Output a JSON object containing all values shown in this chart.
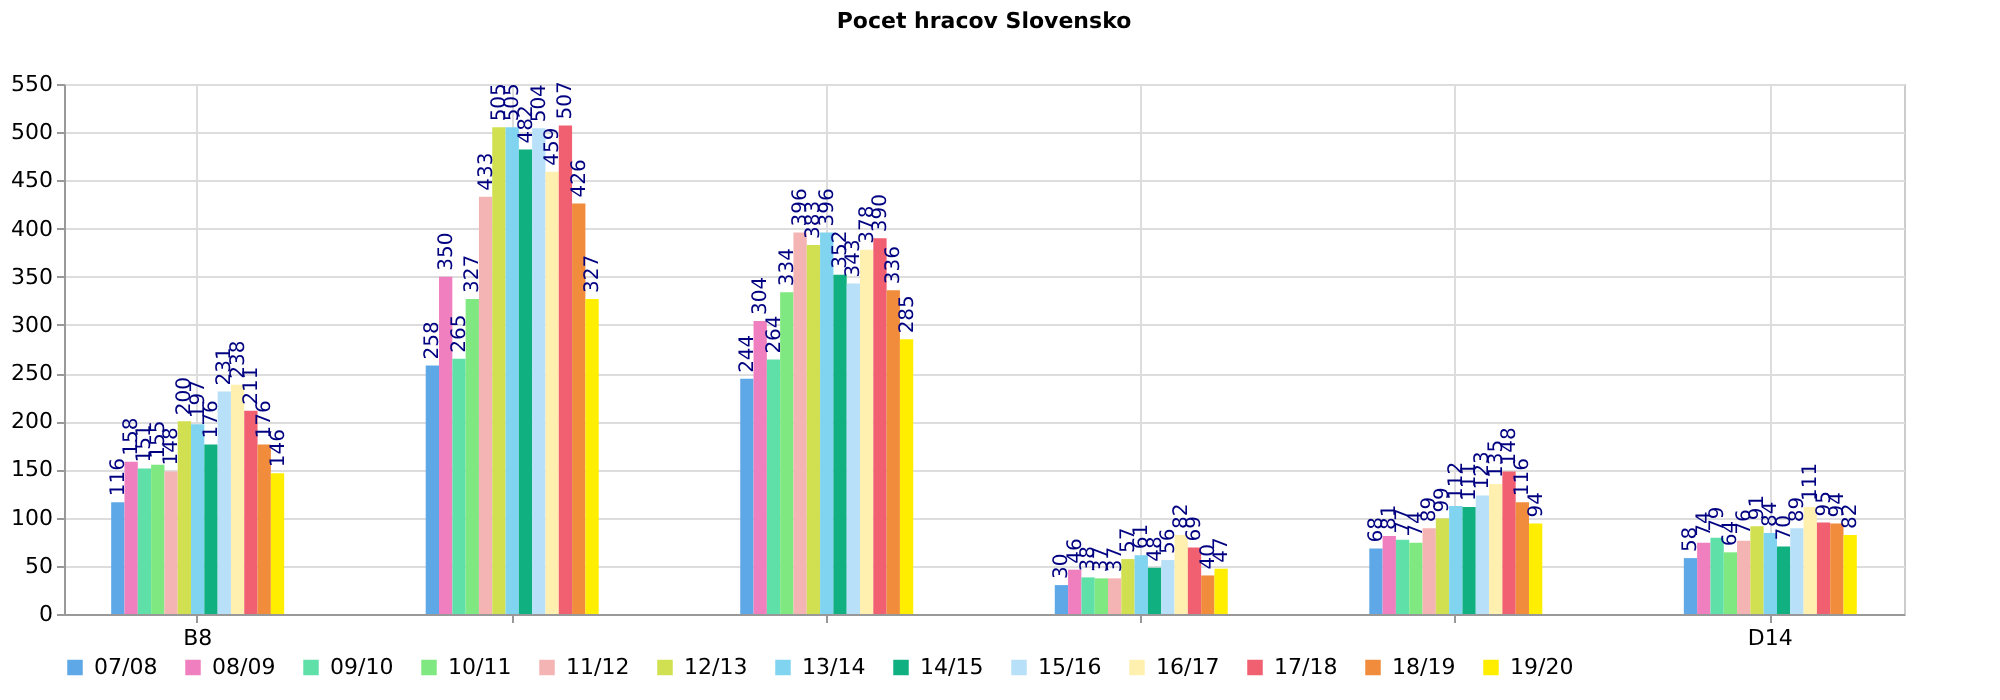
{
  "chart_data": {
    "type": "bar",
    "title": "Pocet hracov Slovensko",
    "categories": [
      "B8",
      null,
      null,
      null,
      null,
      "D14"
    ],
    "series": [
      {
        "name": "07/08",
        "color": "#5fa8e8",
        "values": [
          116,
          258,
          244,
          30,
          68,
          58
        ]
      },
      {
        "name": "08/09",
        "color": "#ef7fbf",
        "values": [
          158,
          350,
          304,
          46,
          81,
          74
        ]
      },
      {
        "name": "09/10",
        "color": "#5fe0a8",
        "values": [
          151,
          265,
          264,
          38,
          77,
          79
        ]
      },
      {
        "name": "10/11",
        "color": "#80e880",
        "values": [
          155,
          327,
          334,
          37,
          74,
          64
        ]
      },
      {
        "name": "11/12",
        "color": "#f4b4b4",
        "values": [
          148,
          433,
          396,
          37,
          89,
          76
        ]
      },
      {
        "name": "12/13",
        "color": "#d0e050",
        "values": [
          200,
          505,
          383,
          57,
          99,
          91
        ]
      },
      {
        "name": "13/14",
        "color": "#80d4f0",
        "values": [
          197,
          505,
          396,
          61,
          112,
          84
        ]
      },
      {
        "name": "14/15",
        "color": "#10b080",
        "values": [
          176,
          482,
          352,
          48,
          111,
          70
        ]
      },
      {
        "name": "15/16",
        "color": "#b8e0f8",
        "values": [
          231,
          504,
          343,
          56,
          123,
          89
        ]
      },
      {
        "name": "16/17",
        "color": "#fff0b0",
        "values": [
          238,
          459,
          378,
          82,
          135,
          111
        ]
      },
      {
        "name": "17/18",
        "color": "#f06070",
        "values": [
          211,
          507,
          390,
          69,
          148,
          95
        ]
      },
      {
        "name": "18/19",
        "color": "#f08c3c",
        "values": [
          176,
          426,
          336,
          40,
          116,
          94
        ]
      },
      {
        "name": "19/20",
        "color": "#ffee00",
        "values": [
          146,
          327,
          285,
          47,
          94,
          82
        ]
      }
    ],
    "ylim": [
      0,
      550
    ],
    "yticks": [
      0,
      50,
      100,
      150,
      200,
      250,
      300,
      350,
      400,
      450,
      500,
      550
    ],
    "grid": true,
    "legend": "bottom",
    "data_labels": true
  }
}
